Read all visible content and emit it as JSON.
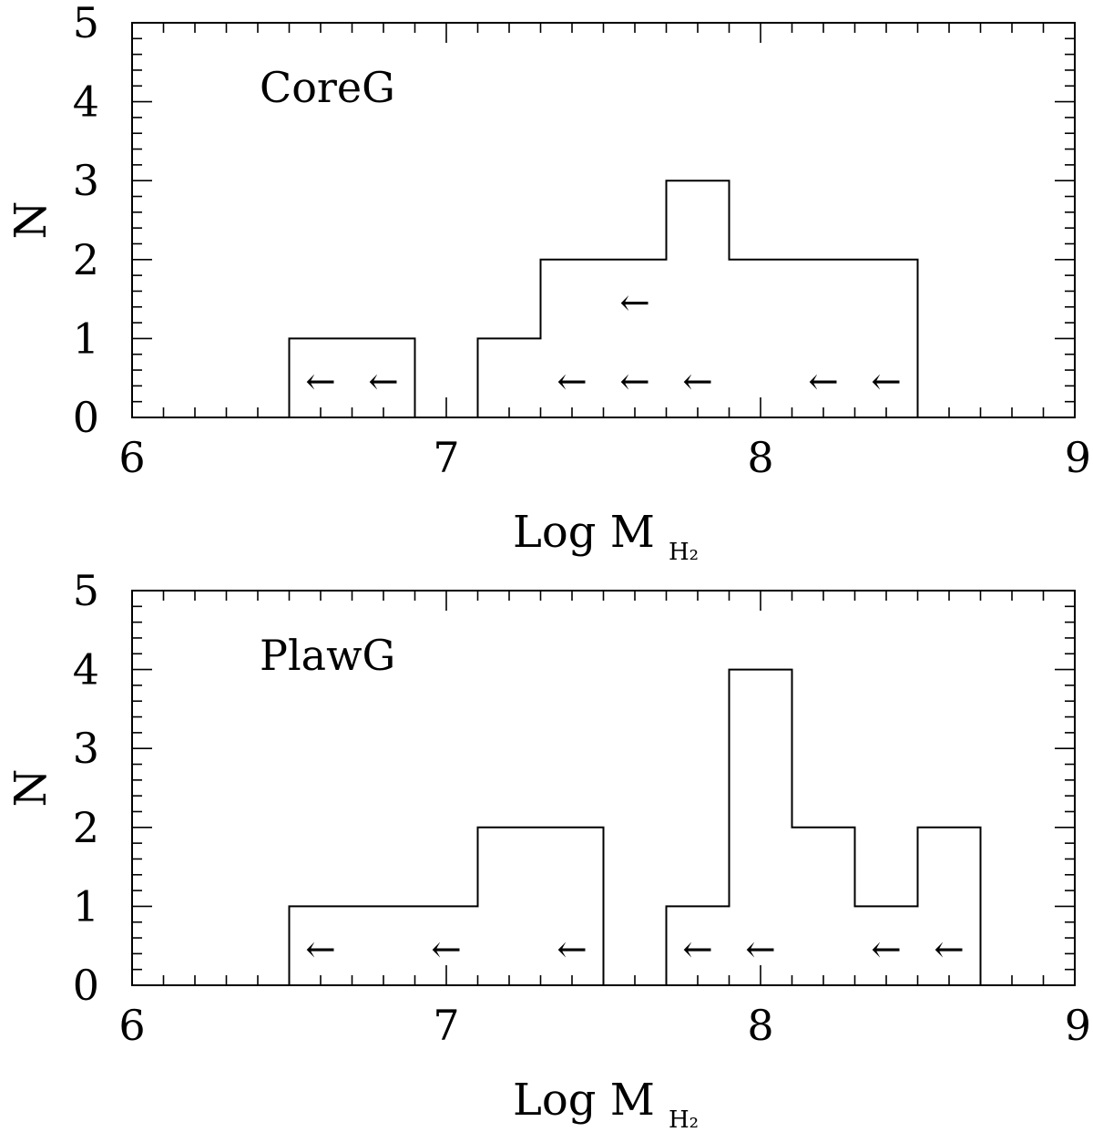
{
  "chart_data": [
    {
      "type": "histogram",
      "title": "CoreG",
      "xlabel": "Log M",
      "xlabel_subscript": "H₂",
      "ylabel": "N",
      "xlim": [
        6,
        9
      ],
      "ylim": [
        0,
        5
      ],
      "x_ticks": [
        "6",
        "7",
        "8",
        "9"
      ],
      "y_ticks": [
        "0",
        "1",
        "2",
        "3",
        "4",
        "5"
      ],
      "bin_width": 0.2,
      "bin_starts": [
        6.5,
        6.7,
        6.9,
        7.1,
        7.3,
        7.5,
        7.7,
        7.9,
        8.1,
        8.3
      ],
      "counts": [
        1,
        1,
        0,
        1,
        2,
        2,
        3,
        2,
        2,
        2
      ],
      "upper_limit_symbol": "←",
      "upper_limits": [
        {
          "x": 6.6,
          "y": 0.45
        },
        {
          "x": 6.8,
          "y": 0.45
        },
        {
          "x": 7.4,
          "y": 0.45
        },
        {
          "x": 7.6,
          "y": 0.45
        },
        {
          "x": 7.6,
          "y": 1.45
        },
        {
          "x": 7.8,
          "y": 0.45
        },
        {
          "x": 8.2,
          "y": 0.45
        },
        {
          "x": 8.4,
          "y": 0.45
        }
      ]
    },
    {
      "type": "histogram",
      "title": "PlawG",
      "xlabel": "Log M",
      "xlabel_subscript": "H₂",
      "ylabel": "N",
      "xlim": [
        6,
        9
      ],
      "ylim": [
        0,
        5
      ],
      "x_ticks": [
        "6",
        "7",
        "8",
        "9"
      ],
      "y_ticks": [
        "0",
        "1",
        "2",
        "3",
        "4",
        "5"
      ],
      "bin_width": 0.2,
      "bin_starts": [
        6.5,
        6.7,
        6.9,
        7.1,
        7.3,
        7.5,
        7.7,
        7.9,
        8.1,
        8.3,
        8.5
      ],
      "counts": [
        1,
        1,
        1,
        2,
        2,
        0,
        1,
        4,
        2,
        1,
        2
      ],
      "upper_limit_symbol": "←",
      "upper_limits": [
        {
          "x": 6.6,
          "y": 0.45
        },
        {
          "x": 7.0,
          "y": 0.45
        },
        {
          "x": 7.4,
          "y": 0.45
        },
        {
          "x": 7.8,
          "y": 0.45
        },
        {
          "x": 8.0,
          "y": 0.45
        },
        {
          "x": 8.4,
          "y": 0.45
        },
        {
          "x": 8.6,
          "y": 0.45
        }
      ]
    }
  ]
}
